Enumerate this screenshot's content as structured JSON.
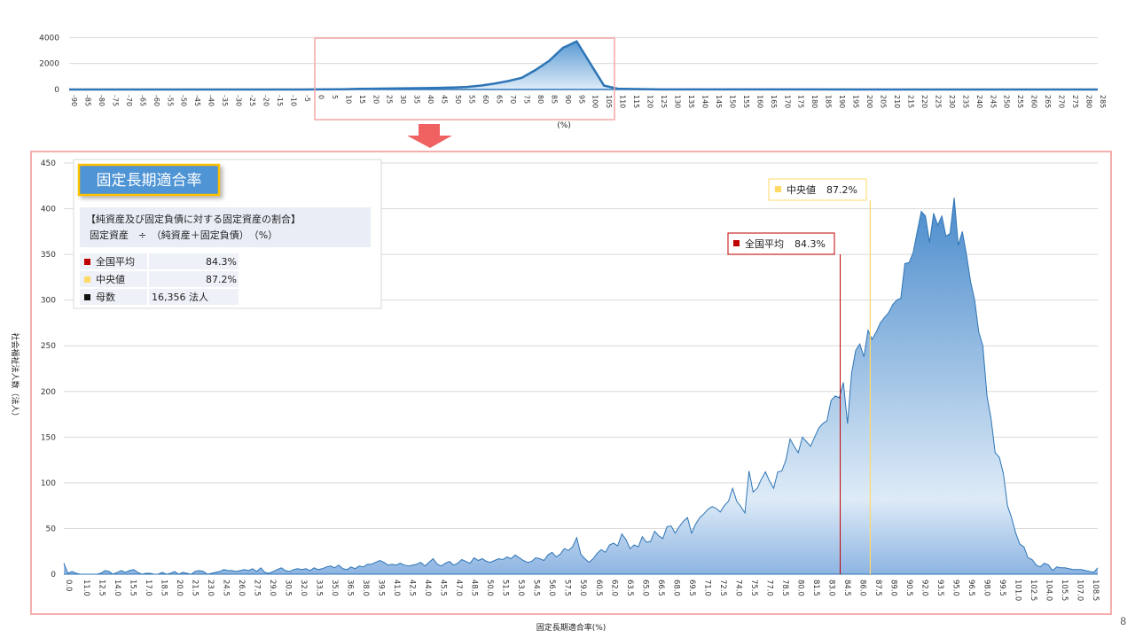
{
  "page_number": "8",
  "arrow_color": "#f06262",
  "chart_data": [
    {
      "id": "overview",
      "type": "area",
      "xlabel": "(%)",
      "ylabel": "",
      "x_ticks": [
        "-90",
        "-85",
        "-80",
        "-75",
        "-70",
        "-65",
        "-60",
        "-55",
        "-50",
        "-45",
        "-40",
        "-35",
        "-30",
        "-25",
        "-20",
        "-15",
        "-10",
        "-5",
        "0",
        "5",
        "10",
        "15",
        "20",
        "25",
        "30",
        "35",
        "40",
        "45",
        "50",
        "55",
        "60",
        "65",
        "70",
        "75",
        "80",
        "85",
        "90",
        "95",
        "100",
        "105",
        "110",
        "115",
        "120",
        "125",
        "130",
        "135",
        "140",
        "145",
        "150",
        "155",
        "160",
        "165",
        "170",
        "175",
        "180",
        "185",
        "190",
        "195",
        "200",
        "205",
        "210",
        "215",
        "220",
        "225",
        "230",
        "235",
        "240",
        "245",
        "250",
        "255",
        "260",
        "265",
        "270",
        "275",
        "280",
        "285"
      ],
      "y_ticks": [
        "4000",
        "2000",
        "0"
      ],
      "ylim": [
        0,
        4500
      ],
      "points": [
        [
          -90,
          0
        ],
        [
          -5,
          0
        ],
        [
          0,
          10
        ],
        [
          10,
          20
        ],
        [
          15,
          50
        ],
        [
          20,
          60
        ],
        [
          30,
          80
        ],
        [
          40,
          110
        ],
        [
          45,
          130
        ],
        [
          50,
          160
        ],
        [
          55,
          200
        ],
        [
          60,
          300
        ],
        [
          65,
          450
        ],
        [
          70,
          650
        ],
        [
          75,
          900
        ],
        [
          80,
          1500
        ],
        [
          85,
          2200
        ],
        [
          90,
          3200
        ],
        [
          95,
          3700
        ],
        [
          100,
          2000
        ],
        [
          105,
          300
        ],
        [
          110,
          60
        ],
        [
          120,
          30
        ],
        [
          125,
          10
        ],
        [
          285,
          0
        ]
      ],
      "highlight_range": [
        "0",
        "105"
      ],
      "colors": {
        "line": "#2e75b6",
        "fill_top": "#5b9bd5",
        "fill_bottom": "#deebf7",
        "highlight": "#f4a6a6"
      }
    },
    {
      "id": "detail",
      "type": "area",
      "xlabel": "固定長期適合率(%)",
      "ylabel": "社会福祉法人数（法人）",
      "y_ticks": [
        "450",
        "400",
        "350",
        "300",
        "250",
        "200",
        "150",
        "100",
        "50",
        "0"
      ],
      "ylim": [
        0,
        450
      ],
      "x_ticks": [
        "0.0",
        "11.0",
        "12.5",
        "14.0",
        "15.5",
        "17.0",
        "18.5",
        "20.0",
        "21.5",
        "23.0",
        "24.5",
        "26.0",
        "27.5",
        "29.0",
        "30.5",
        "32.0",
        "33.5",
        "35.0",
        "36.5",
        "38.0",
        "39.5",
        "41.0",
        "42.5",
        "44.0",
        "45.5",
        "47.0",
        "48.5",
        "50.0",
        "51.5",
        "53.0",
        "54.5",
        "56.0",
        "57.5",
        "59.0",
        "60.5",
        "62.0",
        "63.5",
        "65.0",
        "66.5",
        "68.0",
        "69.5",
        "71.0",
        "72.5",
        "74.0",
        "75.5",
        "77.0",
        "78.5",
        "80.0",
        "81.5",
        "83.0",
        "84.5",
        "86.0",
        "87.5",
        "89.0",
        "90.5",
        "92.0",
        "93.5",
        "95.0",
        "96.5",
        "98.0",
        "99.5",
        "101.0",
        "102.5",
        "104.0",
        "105.5",
        "107.0",
        "108.5"
      ],
      "values": [
        12,
        1,
        3,
        1,
        0,
        0,
        0,
        0,
        0,
        1,
        4,
        3,
        0,
        2,
        4,
        2,
        4,
        5,
        2,
        0,
        1,
        1,
        0,
        0,
        2,
        0,
        1,
        3,
        0,
        2,
        1,
        0,
        3,
        4,
        3,
        0,
        1,
        2,
        3,
        5,
        4,
        4,
        3,
        4,
        5,
        4,
        6,
        3,
        7,
        2,
        1,
        3,
        5,
        7,
        4,
        3,
        5,
        6,
        5,
        6,
        4,
        7,
        5,
        6,
        8,
        9,
        7,
        10,
        6,
        5,
        8,
        6,
        9,
        8,
        11,
        11,
        13,
        15,
        13,
        10,
        11,
        10,
        12,
        10,
        9,
        10,
        11,
        13,
        9,
        13,
        17,
        11,
        9,
        12,
        14,
        10,
        12,
        16,
        14,
        12,
        18,
        15,
        17,
        14,
        13,
        15,
        17,
        16,
        19,
        17,
        21,
        18,
        15,
        13,
        14,
        18,
        17,
        15,
        21,
        24,
        19,
        22,
        28,
        26,
        30,
        40,
        22,
        17,
        13,
        17,
        23,
        27,
        24,
        32,
        34,
        31,
        44,
        38,
        28,
        32,
        30,
        41,
        35,
        36,
        47,
        42,
        39,
        52,
        53,
        45,
        52,
        58,
        62,
        45,
        55,
        62,
        66,
        71,
        74,
        72,
        68,
        75,
        80,
        94,
        80,
        74,
        67,
        113,
        90,
        94,
        104,
        112,
        102,
        94,
        112,
        113,
        125,
        148,
        140,
        133,
        150,
        145,
        140,
        150,
        160,
        165,
        168,
        190,
        195,
        193,
        210,
        165,
        220,
        245,
        252,
        238,
        267,
        257,
        265,
        275,
        281,
        286,
        295,
        300,
        302,
        340,
        341,
        352,
        375,
        397,
        392,
        363,
        395,
        382,
        392,
        370,
        373,
        412,
        360,
        375,
        350,
        320,
        300,
        265,
        250,
        195,
        170,
        133,
        128,
        110,
        75,
        62,
        45,
        33,
        30,
        18,
        16,
        10,
        8,
        12,
        10,
        4,
        8,
        7,
        7,
        6,
        5,
        5,
        5,
        4,
        3,
        2,
        7
      ],
      "annotations": {
        "mean": {
          "label": "全国平均",
          "value": "84.3%",
          "x": 84.3,
          "color": "#c00000"
        },
        "median": {
          "label": "中央値",
          "value": "87.2%",
          "x": 87.2,
          "color": "#ffd966"
        }
      },
      "colors": {
        "line": "#2e75b6",
        "fill_top": "#5b9bd5",
        "fill_bottom": "#deebf7",
        "frame": "#f4a6a6"
      }
    }
  ],
  "info_box": {
    "title": "固定長期適合率",
    "formula_line1": "【純資産及び固定負債に対する固定資産の割合】",
    "formula_line2": "固定資産　÷　（純資産＋固定負債）　（%）",
    "rows": [
      {
        "label": "全国平均",
        "value": "84.3%",
        "color": "#c00000"
      },
      {
        "label": "中央値",
        "value": "87.2%",
        "color": "#ffd966"
      },
      {
        "label": "母数",
        "value": "16,356  法人",
        "color": "#111111"
      }
    ]
  }
}
